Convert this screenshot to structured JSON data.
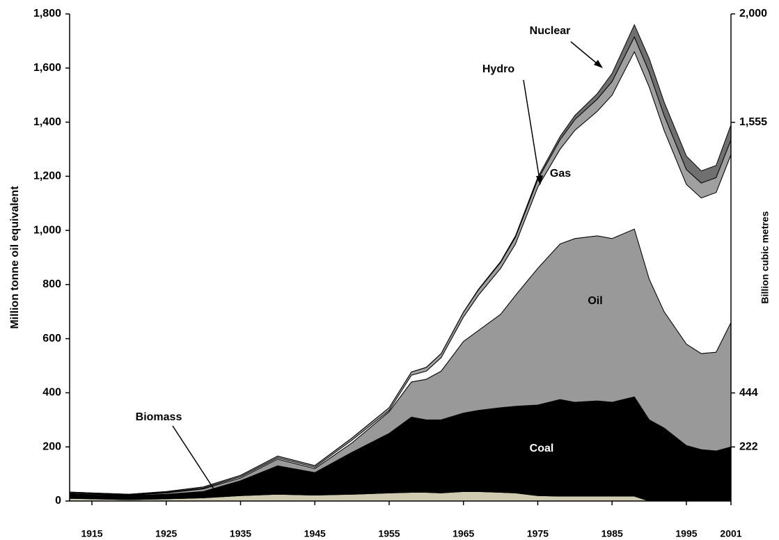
{
  "chart_data": {
    "type": "stacked_area",
    "y_label": "Million tonne oil equivalent",
    "y2_label": "Billion cubic metres",
    "x": [
      1912,
      1915,
      1920,
      1925,
      1930,
      1935,
      1940,
      1945,
      1950,
      1955,
      1958,
      1960,
      1962,
      1965,
      1967,
      1970,
      1972,
      1975,
      1978,
      1980,
      1983,
      1985,
      1988,
      1990,
      1992,
      1995,
      1997,
      1999,
      2001
    ],
    "series": [
      {
        "name": "Biomass",
        "color": "#cfcbb0",
        "values": [
          10,
          8,
          5,
          8,
          12,
          20,
          25,
          22,
          25,
          30,
          32,
          32,
          30,
          35,
          35,
          32,
          30,
          20,
          18,
          18,
          18,
          18,
          18,
          0,
          0,
          0,
          0,
          0,
          0
        ]
      },
      {
        "name": "Coal",
        "color": "#000000",
        "values": [
          15,
          14,
          15,
          17,
          23,
          55,
          105,
          83,
          155,
          220,
          278,
          268,
          270,
          290,
          300,
          313,
          320,
          335,
          357,
          347,
          352,
          347,
          367,
          300,
          270,
          205,
          190,
          185,
          200
        ]
      },
      {
        "name": "Oil",
        "color": "#999999",
        "values": [
          3,
          3,
          2,
          5,
          10,
          10,
          25,
          15,
          35,
          80,
          130,
          150,
          180,
          265,
          295,
          345,
          410,
          505,
          575,
          605,
          610,
          605,
          620,
          520,
          430,
          375,
          355,
          365,
          460
        ]
      },
      {
        "name": "Gas",
        "color": "#ffffff",
        "values": [
          2,
          2,
          1,
          2,
          3,
          5,
          5,
          5,
          10,
          5,
          25,
          30,
          50,
          90,
          130,
          170,
          190,
          300,
          350,
          400,
          460,
          530,
          655,
          710,
          670,
          590,
          575,
          590,
          620
        ]
      },
      {
        "name": "Hydro",
        "color": "#a0a0a0",
        "values": [
          3,
          3,
          2,
          3,
          4,
          5,
          6,
          6,
          8,
          10,
          12,
          14,
          15,
          18,
          20,
          22,
          25,
          28,
          35,
          40,
          45,
          50,
          55,
          55,
          55,
          55,
          55,
          55,
          55
        ]
      },
      {
        "name": "Nuclear",
        "color": "#707070",
        "values": [
          0,
          0,
          0,
          0,
          0,
          0,
          0,
          0,
          0,
          0,
          0,
          0,
          0,
          0,
          2,
          3,
          5,
          8,
          12,
          15,
          20,
          30,
          45,
          50,
          50,
          50,
          45,
          45,
          55
        ]
      }
    ],
    "xlim": [
      1912,
      2001
    ],
    "xticks": [
      1915,
      1925,
      1935,
      1945,
      1955,
      1965,
      1975,
      1985,
      1995,
      2001
    ],
    "ylim": [
      0,
      1800
    ],
    "yticks": [
      0,
      {
        "value": 200,
        "label": "200"
      },
      400,
      600,
      800,
      {
        "value": 1000,
        "label": "1,000"
      },
      {
        "value": 1200,
        "label": "1,200"
      },
      {
        "value": 1400,
        "label": "1,400"
      },
      {
        "value": 1600,
        "label": "1,600"
      },
      {
        "value": 1800,
        "label": "1,800"
      }
    ],
    "y2lim": [
      0,
      2000
    ],
    "y2ticks": [
      222,
      444,
      {
        "value": 1555,
        "label": "1,555"
      },
      {
        "value": 2000,
        "label": "2,000"
      }
    ]
  }
}
